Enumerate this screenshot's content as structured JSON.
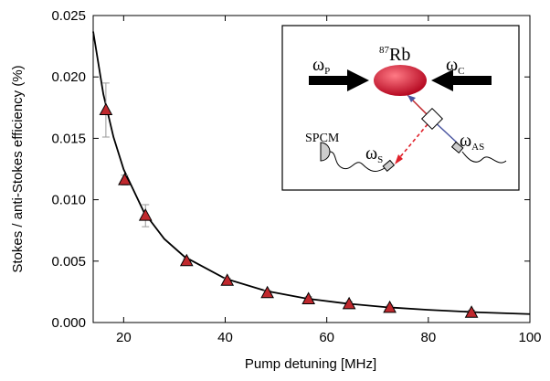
{
  "chart_data": {
    "type": "scatter",
    "xlabel": "Pump detuning [MHz]",
    "ylabel": "Stokes / anti-Stokes  efficiency (%)",
    "x": [
      16.5,
      20.2,
      24.3,
      32.4,
      40.4,
      48.3,
      56.4,
      64.4,
      72.4,
      88.5
    ],
    "values": [
      0.0173,
      0.0116,
      0.0087,
      0.005,
      0.0034,
      0.0024,
      0.0019,
      0.0015,
      0.0012,
      0.0008
    ],
    "errors": [
      0.0022,
      0.0004,
      0.0009,
      0.0002,
      0.0002,
      0.0002,
      0.0002,
      0.0002,
      0.0002,
      0.0002
    ],
    "color": "#c0282d",
    "fit": {
      "x": [
        14,
        16,
        18,
        20,
        24,
        28,
        32,
        40,
        48,
        56,
        64,
        72,
        80,
        90,
        100
      ],
      "values": [
        0.0237,
        0.0186,
        0.0151,
        0.01247,
        0.00898,
        0.00681,
        0.00535,
        0.00358,
        0.00258,
        0.00195,
        0.00154,
        0.00124,
        0.00103,
        0.00083,
        0.00069
      ],
      "color": "#000000"
    },
    "xlim": [
      14,
      100
    ],
    "xticks": [
      20,
      40,
      60,
      80,
      100
    ],
    "ylim": [
      0,
      0.025
    ],
    "yticks": [
      {
        "value": 0,
        "label": "0.000"
      },
      0.005,
      {
        "value": 0.01,
        "label": "0.010"
      },
      0.015,
      {
        "value": 0.02,
        "label": "0.020"
      },
      0.025
    ],
    "inset": {
      "isotope": "87",
      "element": "Rb",
      "labels": [
        {
          "text": "ω",
          "sub": "P"
        },
        {
          "text": "ω",
          "sub": "C"
        },
        {
          "text": "ω",
          "sub": "S"
        },
        {
          "text": "ω",
          "sub": "AS"
        }
      ],
      "detector": "SPCM"
    }
  }
}
